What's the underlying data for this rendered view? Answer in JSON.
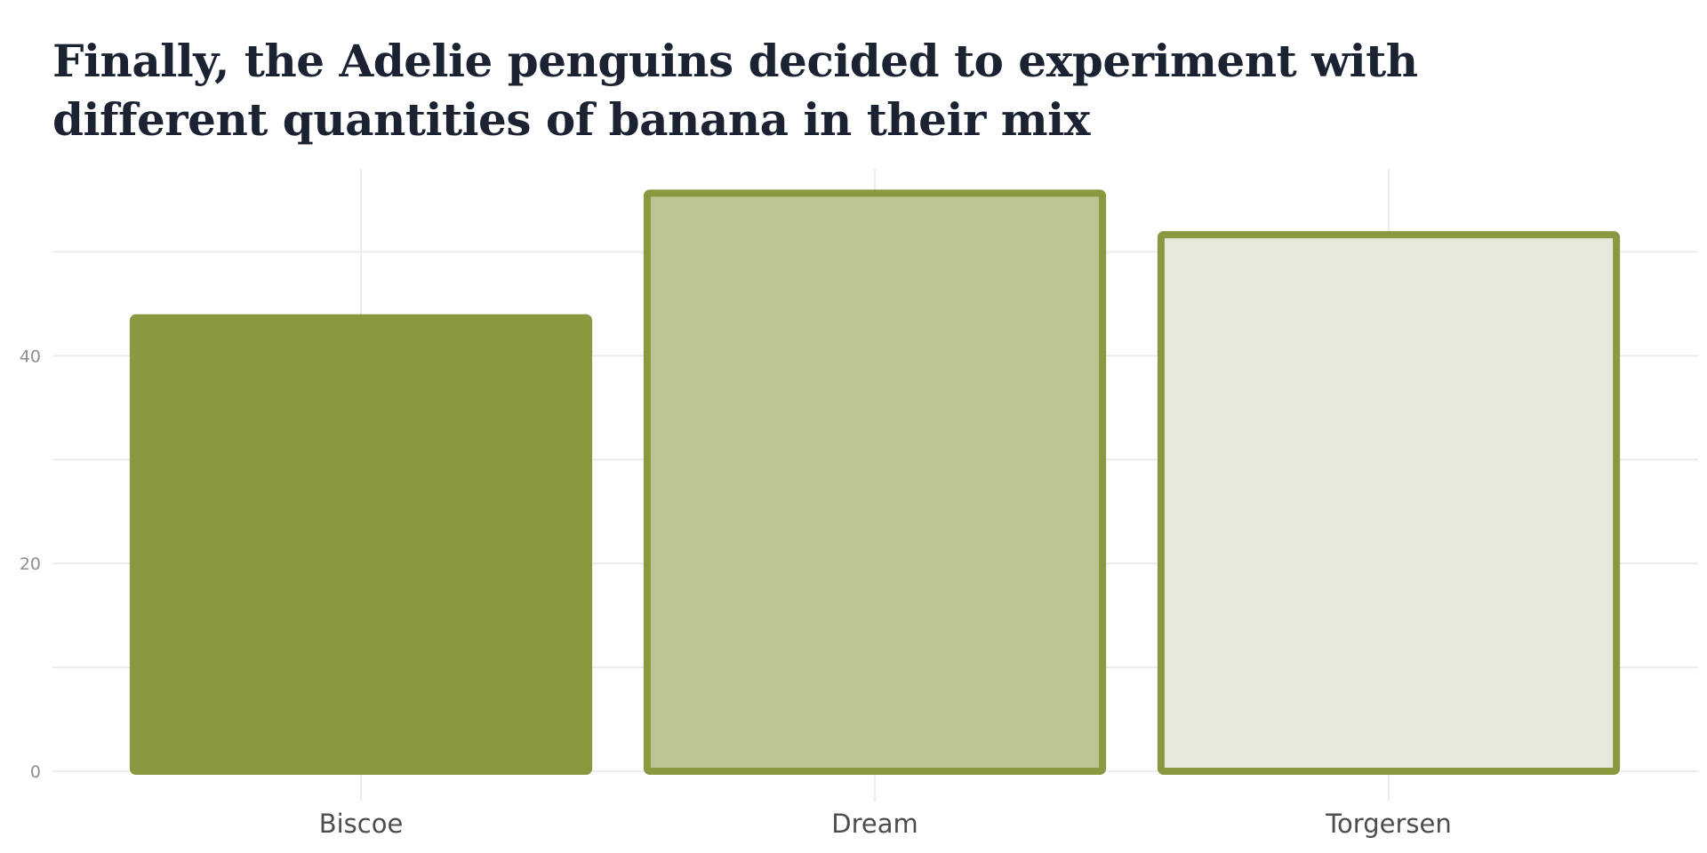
{
  "chart_data": {
    "type": "bar",
    "title": "Finally, the Adelie penguins decided to experiment with different quantities of banana in their mix",
    "xlabel": "",
    "ylabel": "",
    "categories": [
      "Biscoe",
      "Dream",
      "Torgersen"
    ],
    "values": [
      44,
      56,
      52
    ],
    "ylim": [
      0,
      58
    ],
    "yticks": [
      0,
      20,
      40
    ],
    "grid": true,
    "legend": "none",
    "colors": {
      "outline": "#89993f",
      "fills": [
        "#89993f",
        "#bdc693",
        "#e6e9d9"
      ],
      "grid": "#ececec",
      "tick_text": "#8f8f8f",
      "category_text": "#4d4d4d",
      "title_text": "#1b2333"
    }
  }
}
